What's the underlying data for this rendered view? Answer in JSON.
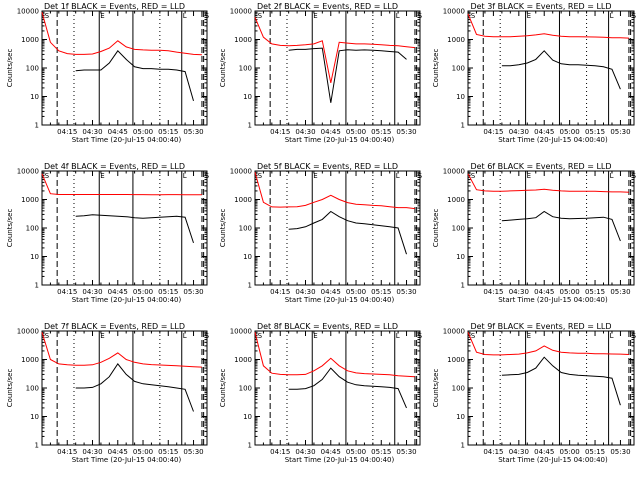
{
  "common": {
    "xlabel": "Start Time (20-Jul-15 04:00:40)",
    "ylabel": "Counts/sec",
    "x_tick_labels": [
      "04:15",
      "04:30",
      "04:45",
      "05:00",
      "05:15",
      "05:30"
    ],
    "y_tick_labels": [
      "1",
      "10",
      "100",
      "1000",
      "10000"
    ],
    "ylim": [
      1,
      10000
    ],
    "y_scale": "log",
    "series_colors": {
      "events": "#000000",
      "lld": "#ff0000"
    },
    "flag_labels": [
      "S",
      "E",
      "L",
      "S"
    ]
  },
  "chart_data": [
    {
      "type": "line",
      "title": "Det 1f BLACK = Events, RED = LLD",
      "x": [
        "04:00",
        "04:05",
        "04:10",
        "04:15",
        "04:20",
        "04:25",
        "04:30",
        "04:35",
        "04:40",
        "04:45",
        "04:50",
        "04:55",
        "05:00",
        "05:05",
        "05:10",
        "05:15",
        "05:20",
        "05:25",
        "05:30",
        "05:35"
      ],
      "series": [
        {
          "name": "Events",
          "values": [
            null,
            null,
            null,
            null,
            80,
            85,
            85,
            85,
            150,
            400,
            200,
            110,
            95,
            95,
            90,
            90,
            85,
            75,
            7,
            null
          ]
        },
        {
          "name": "LLD",
          "values": [
            9000,
            800,
            400,
            320,
            300,
            300,
            310,
            380,
            500,
            900,
            550,
            450,
            430,
            420,
            420,
            400,
            360,
            330,
            300,
            290
          ]
        }
      ]
    },
    {
      "type": "line",
      "title": "Det 2f BLACK = Events, RED = LLD",
      "x": [
        "04:00",
        "04:05",
        "04:10",
        "04:15",
        "04:20",
        "04:25",
        "04:30",
        "04:35",
        "04:40",
        "04:45",
        "04:50",
        "04:55",
        "05:00",
        "05:05",
        "05:10",
        "05:15",
        "05:20",
        "05:25",
        "05:30",
        "05:35"
      ],
      "series": [
        {
          "name": "Events",
          "values": [
            null,
            null,
            null,
            null,
            420,
            450,
            450,
            480,
            500,
            6,
            400,
            440,
            420,
            430,
            420,
            400,
            380,
            360,
            200,
            null
          ]
        },
        {
          "name": "LLD",
          "values": [
            6000,
            1200,
            700,
            620,
            600,
            620,
            650,
            700,
            900,
            30,
            800,
            750,
            700,
            700,
            680,
            650,
            620,
            600,
            560,
            520
          ]
        }
      ]
    },
    {
      "type": "line",
      "title": "Det 3f BLACK = Events, RED = LLD",
      "x": [
        "04:00",
        "04:05",
        "04:10",
        "04:15",
        "04:20",
        "04:25",
        "04:30",
        "04:35",
        "04:40",
        "04:45",
        "04:50",
        "04:55",
        "05:00",
        "05:05",
        "05:10",
        "05:15",
        "05:20",
        "05:25",
        "05:30",
        "05:35"
      ],
      "series": [
        {
          "name": "Events",
          "values": [
            null,
            null,
            null,
            null,
            120,
            120,
            130,
            150,
            200,
            400,
            190,
            140,
            130,
            130,
            125,
            120,
            110,
            90,
            18,
            null
          ]
        },
        {
          "name": "LLD",
          "values": [
            8000,
            1500,
            1300,
            1250,
            1250,
            1250,
            1300,
            1350,
            1450,
            1600,
            1400,
            1300,
            1250,
            1250,
            1230,
            1220,
            1200,
            1150,
            1150,
            1120
          ]
        }
      ]
    },
    {
      "type": "line",
      "title": "Det 4f BLACK = Events, RED = LLD",
      "x": [
        "04:00",
        "04:05",
        "04:10",
        "04:15",
        "04:20",
        "04:25",
        "04:30",
        "04:35",
        "04:40",
        "04:45",
        "04:50",
        "04:55",
        "05:00",
        "05:05",
        "05:10",
        "05:15",
        "05:20",
        "05:25",
        "05:30",
        "05:35"
      ],
      "series": [
        {
          "name": "Events",
          "values": [
            null,
            null,
            null,
            null,
            260,
            270,
            290,
            280,
            270,
            260,
            250,
            230,
            220,
            230,
            240,
            250,
            260,
            240,
            30,
            null
          ]
        },
        {
          "name": "LLD",
          "values": [
            8000,
            1600,
            1500,
            1500,
            1500,
            1500,
            1500,
            1500,
            1500,
            1500,
            1500,
            1480,
            1480,
            1470,
            1470,
            1480,
            1480,
            1470,
            1470,
            1470
          ]
        }
      ]
    },
    {
      "type": "line",
      "title": "Det 5f BLACK = Events, RED = LLD",
      "x": [
        "04:00",
        "04:05",
        "04:10",
        "04:15",
        "04:20",
        "04:25",
        "04:30",
        "04:35",
        "04:40",
        "04:45",
        "04:50",
        "04:55",
        "05:00",
        "05:05",
        "05:10",
        "05:15",
        "05:20",
        "05:25",
        "05:30",
        "05:35"
      ],
      "series": [
        {
          "name": "Events",
          "values": [
            null,
            null,
            null,
            null,
            90,
            95,
            110,
            150,
            200,
            380,
            250,
            180,
            150,
            140,
            130,
            120,
            110,
            100,
            12,
            null
          ]
        },
        {
          "name": "LLD",
          "values": [
            9000,
            800,
            550,
            540,
            550,
            560,
            620,
            800,
            1000,
            1400,
            1000,
            780,
            680,
            650,
            620,
            600,
            560,
            520,
            520,
            480
          ]
        }
      ]
    },
    {
      "type": "line",
      "title": "Det 6f BLACK = Events, RED = LLD",
      "x": [
        "04:00",
        "04:05",
        "04:10",
        "04:15",
        "04:20",
        "04:25",
        "04:30",
        "04:35",
        "04:40",
        "04:45",
        "04:50",
        "04:55",
        "05:00",
        "05:05",
        "05:10",
        "05:15",
        "05:20",
        "05:25",
        "05:30",
        "05:35"
      ],
      "series": [
        {
          "name": "Events",
          "values": [
            null,
            null,
            null,
            null,
            180,
            190,
            200,
            210,
            230,
            380,
            250,
            220,
            210,
            215,
            220,
            230,
            240,
            200,
            35,
            null
          ]
        },
        {
          "name": "LLD",
          "values": [
            8000,
            2200,
            2000,
            1950,
            1950,
            2000,
            2050,
            2100,
            2150,
            2300,
            2100,
            2000,
            1950,
            1950,
            1950,
            1950,
            1900,
            1850,
            1850,
            1800
          ]
        }
      ]
    },
    {
      "type": "line",
      "title": "Det 7f BLACK = Events, RED = LLD",
      "x": [
        "04:00",
        "04:05",
        "04:10",
        "04:15",
        "04:20",
        "04:25",
        "04:30",
        "04:35",
        "04:40",
        "04:45",
        "04:50",
        "04:55",
        "05:00",
        "05:05",
        "05:10",
        "05:15",
        "05:20",
        "05:25",
        "05:30",
        "05:35"
      ],
      "series": [
        {
          "name": "Events",
          "values": [
            null,
            null,
            null,
            null,
            100,
            100,
            105,
            140,
            250,
            700,
            300,
            170,
            140,
            130,
            120,
            110,
            100,
            90,
            15,
            null
          ]
        },
        {
          "name": "LLD",
          "values": [
            9000,
            1000,
            700,
            650,
            630,
            630,
            650,
            800,
            1100,
            1700,
            1000,
            800,
            700,
            660,
            640,
            620,
            600,
            580,
            560,
            540
          ]
        }
      ]
    },
    {
      "type": "line",
      "title": "Det 8f BLACK = Events, RED = LLD",
      "x": [
        "04:00",
        "04:05",
        "04:10",
        "04:15",
        "04:20",
        "04:25",
        "04:30",
        "04:35",
        "04:40",
        "04:45",
        "04:50",
        "04:55",
        "05:00",
        "05:05",
        "05:10",
        "05:15",
        "05:20",
        "05:25",
        "05:30",
        "05:35"
      ],
      "series": [
        {
          "name": "Events",
          "values": [
            null,
            null,
            null,
            null,
            90,
            90,
            95,
            120,
            200,
            500,
            250,
            160,
            130,
            120,
            115,
            110,
            105,
            95,
            20,
            null
          ]
        },
        {
          "name": "LLD",
          "values": [
            9000,
            600,
            330,
            300,
            290,
            290,
            300,
            400,
            600,
            1100,
            600,
            400,
            340,
            320,
            310,
            300,
            290,
            270,
            260,
            250
          ]
        }
      ]
    },
    {
      "type": "line",
      "title": "Det 9f BLACK = Events, RED = LLD",
      "x": [
        "04:00",
        "04:05",
        "04:10",
        "04:15",
        "04:20",
        "04:25",
        "04:30",
        "04:35",
        "04:40",
        "04:45",
        "04:50",
        "04:55",
        "05:00",
        "05:05",
        "05:10",
        "05:15",
        "05:20",
        "05:25",
        "05:30",
        "05:35"
      ],
      "series": [
        {
          "name": "Events",
          "values": [
            null,
            null,
            null,
            null,
            280,
            290,
            300,
            350,
            500,
            1200,
            600,
            350,
            300,
            280,
            270,
            260,
            250,
            220,
            25,
            null
          ]
        },
        {
          "name": "LLD",
          "values": [
            9000,
            1800,
            1500,
            1450,
            1450,
            1500,
            1550,
            1700,
            2000,
            3000,
            2100,
            1800,
            1700,
            1650,
            1650,
            1600,
            1580,
            1560,
            1550,
            1500
          ]
        }
      ]
    }
  ]
}
